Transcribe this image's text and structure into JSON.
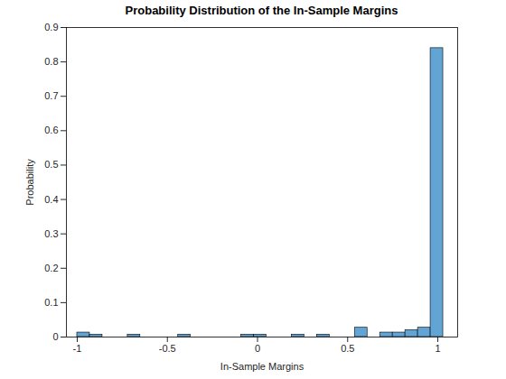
{
  "chart_data": {
    "type": "histogram",
    "title": "Probability Distribution of the In-Sample Margins",
    "xlabel": "In-Sample Margins",
    "ylabel": "Probability",
    "bins": [
      -1,
      -0.93,
      -0.86,
      -0.79,
      -0.72,
      -0.65,
      -0.58,
      -0.51,
      -0.44,
      -0.37,
      -0.3,
      -0.23,
      -0.16,
      -0.09,
      -0.02,
      0.05,
      0.12,
      0.19,
      0.26,
      0.33,
      0.4,
      0.47,
      0.54,
      0.61,
      0.68,
      0.75,
      0.82,
      0.89,
      0.96,
      1.03
    ],
    "values": [
      0.013,
      0.007,
      0,
      0,
      0.007,
      0,
      0,
      0,
      0.007,
      0,
      0,
      0,
      0,
      0.007,
      0.007,
      0,
      0,
      0.007,
      0,
      0.007,
      0,
      0,
      0.027,
      0,
      0.013,
      0.013,
      0.02,
      0.027,
      0.84
    ],
    "color": "#62a4d4",
    "xlim": [
      -1.06,
      1.11
    ],
    "xticks": [
      -1,
      -0.5,
      0,
      0.5,
      1
    ],
    "ylim": [
      0,
      0.9
    ],
    "yticks": [
      0,
      0.1,
      0.2,
      0.3,
      0.4,
      0.5,
      0.6,
      0.7,
      0.8,
      0.9
    ],
    "grid": false
  }
}
